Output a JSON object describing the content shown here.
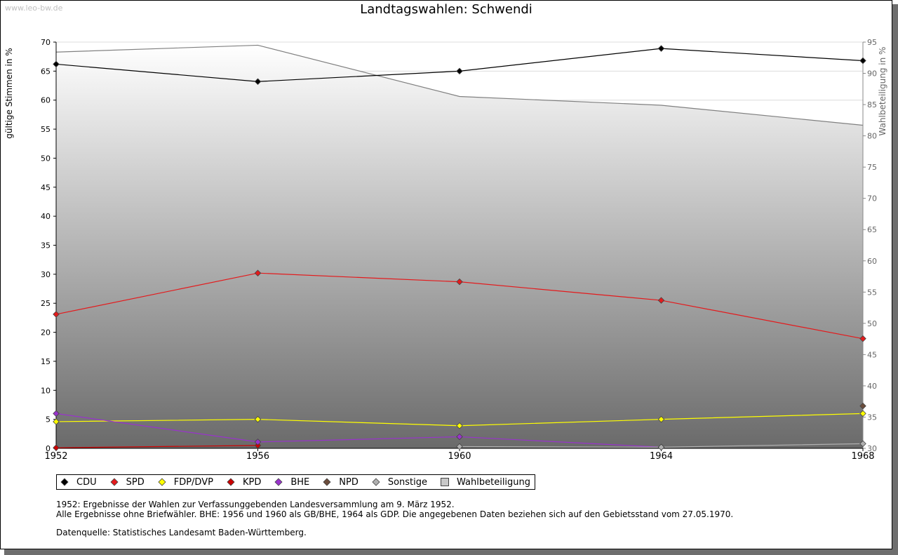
{
  "watermark": "www.leo-bw.de",
  "chart_data": {
    "type": "line",
    "title": "Landtagswahlen: Schwendi",
    "ylabel": "gültige Stimmen in %",
    "y2label": "Wahlbeteiligung in %",
    "x": [
      "1952",
      "1956",
      "1960",
      "1964",
      "1968"
    ],
    "ylim": [
      0,
      70
    ],
    "y2lim": [
      30,
      95
    ],
    "yticks": [
      "0",
      "5",
      "10",
      "15",
      "20",
      "25",
      "30",
      "35",
      "40",
      "45",
      "50",
      "55",
      "60",
      "65",
      "70"
    ],
    "y2ticks": [
      "30",
      "35",
      "40",
      "45",
      "50",
      "55",
      "60",
      "65",
      "70",
      "75",
      "80",
      "85",
      "90",
      "95"
    ],
    "grid": true,
    "legend_position": "bottom",
    "series": [
      {
        "name": "CDU",
        "color": "#000000",
        "values": [
          66.2,
          63.2,
          65.0,
          68.9,
          66.8
        ]
      },
      {
        "name": "SPD",
        "color": "#e41a1c",
        "values": [
          23.1,
          30.2,
          28.7,
          25.5,
          18.9
        ]
      },
      {
        "name": "FDP/DVP",
        "color": "#ffff00",
        "values": [
          4.6,
          5.0,
          3.9,
          5.0,
          6.0
        ]
      },
      {
        "name": "KPD",
        "color": "#cc0000",
        "values": [
          0.1,
          0.5,
          null,
          null,
          null
        ]
      },
      {
        "name": "BHE",
        "color": "#9933cc",
        "values": [
          6.0,
          1.1,
          2.0,
          0.2,
          null
        ]
      },
      {
        "name": "NPD",
        "color": "#6b4c3b",
        "values": [
          null,
          null,
          null,
          null,
          7.3
        ]
      },
      {
        "name": "Sonstige",
        "color": "#b0b0b0",
        "values": [
          null,
          null,
          0.3,
          0.2,
          0.8
        ]
      },
      {
        "name": "Wahlbeteiligung",
        "color": "#c8c8c8",
        "axis": "right",
        "values": [
          93.4,
          94.5,
          86.3,
          84.9,
          81.7
        ]
      }
    ]
  },
  "notes": [
    "1952: Ergebnisse der Wahlen zur Verfassunggebenden Landesversammlung am 9. März 1952.",
    "Alle Ergebnisse ohne Briefwähler. BHE: 1956 und 1960 als GB/BHE, 1964 als GDP. Die angegebenen Daten beziehen sich auf den Gebietsstand vom 27.05.1970."
  ],
  "source": "Datenquelle: Statistisches Landesamt Baden-Württemberg."
}
